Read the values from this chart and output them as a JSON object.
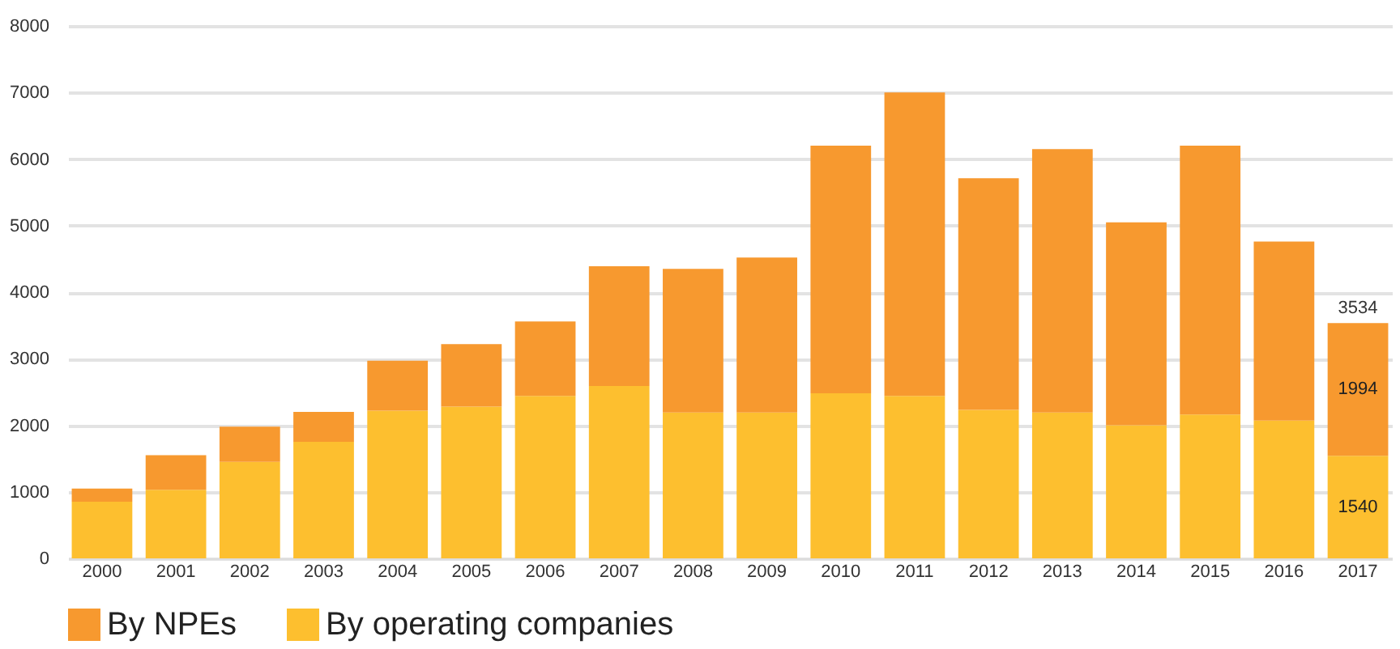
{
  "chart_data": {
    "type": "bar",
    "stacked": true,
    "categories": [
      "2000",
      "2001",
      "2002",
      "2003",
      "2004",
      "2005",
      "2006",
      "2007",
      "2008",
      "2009",
      "2010",
      "2011",
      "2012",
      "2013",
      "2014",
      "2015",
      "2016",
      "2017"
    ],
    "series": [
      {
        "name": "By operating companies",
        "color": "#fdbf2f",
        "values": [
          850,
          1030,
          1450,
          1750,
          2220,
          2280,
          2440,
          2590,
          2190,
          2190,
          2480,
          2440,
          2230,
          2190,
          2000,
          2160,
          2070,
          1540
        ],
        "value_labels": [
          null,
          null,
          null,
          null,
          null,
          null,
          null,
          null,
          null,
          null,
          null,
          null,
          null,
          null,
          null,
          null,
          null,
          "1540"
        ]
      },
      {
        "name": "By NPEs",
        "color": "#f7992f",
        "values": [
          200,
          520,
          530,
          450,
          750,
          940,
          1120,
          1800,
          2160,
          2330,
          3720,
          4560,
          3480,
          3960,
          3050,
          4040,
          2690,
          1994
        ],
        "value_labels": [
          null,
          null,
          null,
          null,
          null,
          null,
          null,
          null,
          null,
          null,
          null,
          null,
          null,
          null,
          null,
          null,
          null,
          "1994"
        ]
      }
    ],
    "totals": [
      null,
      null,
      null,
      null,
      null,
      null,
      null,
      null,
      null,
      null,
      null,
      null,
      null,
      null,
      null,
      null,
      null,
      "3534"
    ],
    "ylim": [
      0,
      8000
    ],
    "yticks": [
      0,
      1000,
      2000,
      3000,
      4000,
      5000,
      6000,
      7000,
      8000
    ],
    "grid": "y",
    "legend": "bottom"
  }
}
